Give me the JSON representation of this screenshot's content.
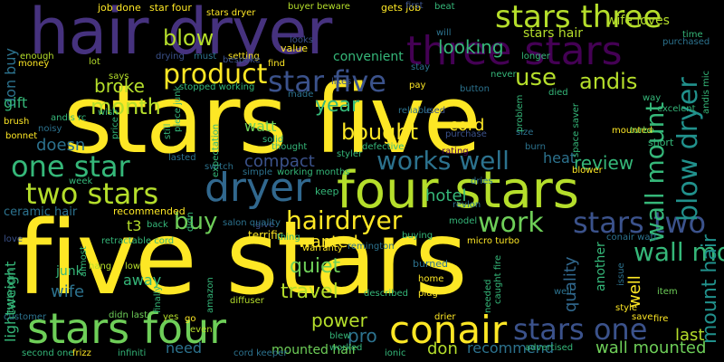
{
  "words": [
    {
      "text": "stars five",
      "color": "#fde725"
    },
    {
      "text": "five stars",
      "color": "#fde725"
    },
    {
      "text": "hair dryer",
      "color": "#46327e"
    },
    {
      "text": "four stars",
      "color": "#b5de2b"
    },
    {
      "text": "three stars",
      "color": "#440154"
    },
    {
      "text": "stars three",
      "color": "#b5de2b"
    },
    {
      "text": "dryer",
      "color": "#31688e"
    },
    {
      "text": "stars four",
      "color": "#6ece58"
    },
    {
      "text": "two stars",
      "color": "#b5de2b"
    },
    {
      "text": "one star",
      "color": "#35b779"
    },
    {
      "text": "star five",
      "color": "#3b528b"
    },
    {
      "text": "product",
      "color": "#fde725"
    },
    {
      "text": "conair",
      "color": "#fde725"
    },
    {
      "text": "stars one",
      "color": "#3b528b"
    },
    {
      "text": "stars two",
      "color": "#3b528b"
    },
    {
      "text": "hairdryer",
      "color": "#fde725"
    },
    {
      "text": "works well",
      "color": "#2c728e"
    },
    {
      "text": "work",
      "color": "#6ece58"
    },
    {
      "text": "wall mount",
      "color": "#35b779"
    },
    {
      "text": "blow dryer",
      "color": "#21918c"
    },
    {
      "text": "month",
      "color": "#b5de2b"
    },
    {
      "text": "blow",
      "color": "#b5de2b"
    },
    {
      "text": "andis",
      "color": "#b5de2b"
    },
    {
      "text": "use",
      "color": "#b5de2b"
    },
    {
      "text": "buy",
      "color": "#6ece58"
    },
    {
      "text": "bought",
      "color": "#fde725"
    },
    {
      "text": "quiet",
      "color": "#6ece58"
    },
    {
      "text": "travel",
      "color": "#b5de2b"
    },
    {
      "text": "power",
      "color": "#b5de2b"
    },
    {
      "text": "wanted",
      "color": "#fde725"
    },
    {
      "text": "year",
      "color": "#35b779"
    },
    {
      "text": "broke",
      "color": "#b5de2b"
    },
    {
      "text": "review",
      "color": "#35b779"
    },
    {
      "text": "hotel",
      "color": "#35b779"
    },
    {
      "text": "mount hair",
      "color": "#21918c"
    },
    {
      "text": "wall mounted",
      "color": "#6ece58"
    },
    {
      "text": "recommend",
      "color": "#2c728e"
    },
    {
      "text": "don",
      "color": "#b5de2b"
    },
    {
      "text": "pro",
      "color": "#2c728e"
    },
    {
      "text": "quality",
      "color": "#31688e"
    },
    {
      "text": "looking",
      "color": "#35b779"
    },
    {
      "text": "doesn",
      "color": "#2c728e"
    },
    {
      "text": "cord",
      "color": "#fde725"
    },
    {
      "text": "compact",
      "color": "#3b528b"
    },
    {
      "text": "watt",
      "color": "#6ece58"
    },
    {
      "text": "need",
      "color": "#2c728e"
    },
    {
      "text": "wife",
      "color": "#2c728e"
    },
    {
      "text": "lightweight",
      "color": "#35b779"
    },
    {
      "text": "mounted hair",
      "color": "#6ece58"
    },
    {
      "text": "well",
      "color": "#fde725"
    },
    {
      "text": "last",
      "color": "#b5de2b"
    },
    {
      "text": "junk",
      "color": "#35b779"
    },
    {
      "text": "t3",
      "color": "#b5de2b"
    },
    {
      "text": "ceramic hair",
      "color": "#2c728e"
    },
    {
      "text": "heat",
      "color": "#2c728e"
    },
    {
      "text": "wife loves",
      "color": "#b5de2b"
    },
    {
      "text": "stars hair",
      "color": "#b5de2b"
    },
    {
      "text": "convenient",
      "color": "#35b779"
    },
    {
      "text": "away",
      "color": "#35b779"
    },
    {
      "text": "don buy",
      "color": "#2c728e"
    },
    {
      "text": "gift",
      "color": "#35b779"
    },
    {
      "text": "job done",
      "color": "#fde725"
    },
    {
      "text": "star four",
      "color": "#fde725"
    },
    {
      "text": "stars dryer",
      "color": "#fde725"
    },
    {
      "text": "buyer beware",
      "color": "#b5de2b"
    },
    {
      "text": "gets job",
      "color": "#fde725"
    },
    {
      "text": "beat",
      "color": "#35b779"
    },
    {
      "text": "value",
      "color": "#fde725"
    },
    {
      "text": "drying",
      "color": "#3b528b"
    },
    {
      "text": "setting",
      "color": "#fde725"
    },
    {
      "text": "stopped working",
      "color": "#35b779"
    },
    {
      "text": "warranty",
      "color": "#fde725"
    },
    {
      "text": "burned",
      "color": "#2c728e"
    },
    {
      "text": "infiniti",
      "color": "#35b779"
    },
    {
      "text": "advertised",
      "color": "#35b779"
    },
    {
      "text": "blew",
      "color": "#35b779"
    },
    {
      "text": "terrific",
      "color": "#fde725"
    },
    {
      "text": "recommended",
      "color": "#fde725"
    },
    {
      "text": "defective",
      "color": "#35b779"
    },
    {
      "text": "solid",
      "color": "#35b779"
    },
    {
      "text": "lasted",
      "color": "#2c728e"
    },
    {
      "text": "keep",
      "color": "#35b779"
    },
    {
      "text": "buying",
      "color": "#35b779"
    },
    {
      "text": "used",
      "color": "#3b528b"
    },
    {
      "text": "purchase",
      "color": "#3b528b"
    },
    {
      "text": "size",
      "color": "#2c728e"
    },
    {
      "text": "short",
      "color": "#35b779"
    },
    {
      "text": "blower",
      "color": "#fde725"
    },
    {
      "text": "fire",
      "color": "#fde725"
    },
    {
      "text": "item",
      "color": "#6ece58"
    },
    {
      "text": "style",
      "color": "#fde725"
    },
    {
      "text": "mounted",
      "color": "#fde725"
    },
    {
      "text": "micro turbo",
      "color": "#fde725"
    },
    {
      "text": "conair watt",
      "color": "#2c728e"
    },
    {
      "text": "home",
      "color": "#fde725"
    },
    {
      "text": "plug",
      "color": "#fde725"
    },
    {
      "text": "hang",
      "color": "#b5de2b"
    },
    {
      "text": "low",
      "color": "#b5de2b"
    },
    {
      "text": "back",
      "color": "#35b779"
    },
    {
      "text": "love",
      "color": "#3b528b"
    },
    {
      "text": "frizz",
      "color": "#fde725"
    },
    {
      "text": "second one",
      "color": "#35b779"
    },
    {
      "text": "didn last",
      "color": "#6ece58"
    },
    {
      "text": "even",
      "color": "#b5de2b"
    },
    {
      "text": "worked",
      "color": "#35b779"
    },
    {
      "text": "ionic",
      "color": "#35b779"
    },
    {
      "text": "cord keeper",
      "color": "#2c728e"
    },
    {
      "text": "brush",
      "color": "#fde725"
    },
    {
      "text": "noisy",
      "color": "#2c728e"
    },
    {
      "text": "bonnet",
      "color": "#fde725"
    },
    {
      "text": "enough",
      "color": "#b5de2b"
    },
    {
      "text": "money",
      "color": "#fde725"
    },
    {
      "text": "wish",
      "color": "#35b779"
    },
    {
      "text": "says",
      "color": "#b5de2b"
    },
    {
      "text": "simple",
      "color": "#2c728e"
    },
    {
      "text": "styler",
      "color": "#35b779"
    },
    {
      "text": "turbo",
      "color": "#6ece58"
    },
    {
      "text": "time",
      "color": "#35b779"
    },
    {
      "text": "purchased",
      "color": "#2c728e"
    },
    {
      "text": "reliable",
      "color": "#2c728e"
    },
    {
      "text": "stay",
      "color": "#2c728e"
    },
    {
      "text": "pay",
      "color": "#fde725"
    },
    {
      "text": "button",
      "color": "#2c728e"
    },
    {
      "text": "died",
      "color": "#35b779"
    },
    {
      "text": "find",
      "color": "#fde725"
    },
    {
      "text": "likes",
      "color": "#3b528b"
    },
    {
      "text": "thought",
      "color": "#35b779"
    },
    {
      "text": "dries",
      "color": "#2c728e"
    },
    {
      "text": "revlon",
      "color": "#2c728e"
    },
    {
      "text": "model",
      "color": "#35b779"
    },
    {
      "text": "drier",
      "color": "#fde725"
    },
    {
      "text": "go",
      "color": "#fde725"
    },
    {
      "text": "yes",
      "color": "#b5de2b"
    },
    {
      "text": "save",
      "color": "#fde725"
    },
    {
      "text": "never",
      "color": "#35b779"
    },
    {
      "text": "will",
      "color": "#2c728e"
    },
    {
      "text": "longer",
      "color": "#35b779"
    },
    {
      "text": "give",
      "color": "#3b528b"
    },
    {
      "text": "thing",
      "color": "#35b779"
    },
    {
      "text": "customer",
      "color": "#2c728e"
    },
    {
      "text": "andis rc",
      "color": "#35b779"
    },
    {
      "text": "way",
      "color": "#35b779"
    },
    {
      "text": "excelent",
      "color": "#35b779"
    },
    {
      "text": "burn",
      "color": "#2c728e"
    },
    {
      "text": "week",
      "color": "#35b779"
    },
    {
      "text": "lot",
      "color": "#b5de2b"
    },
    {
      "text": "must",
      "color": "#2c728e"
    },
    {
      "text": "made",
      "color": "#2c728e"
    },
    {
      "text": "switch",
      "color": "#2c728e"
    },
    {
      "text": "looks",
      "color": "#3b528b"
    },
    {
      "text": "remington",
      "color": "#2c728e"
    },
    {
      "text": "described",
      "color": "#35b779"
    },
    {
      "text": "well",
      "color": "#2c728e"
    },
    {
      "text": "first",
      "color": "#3b528b"
    },
    {
      "text": "almost",
      "color": "#35b779"
    },
    {
      "text": "price",
      "color": "#35b779"
    },
    {
      "text": "finally",
      "color": "#35b779"
    },
    {
      "text": "amazon",
      "color": "#35b779"
    },
    {
      "text": "diffuser",
      "color": "#b5de2b"
    },
    {
      "text": "working months",
      "color": "#35b779"
    },
    {
      "text": "salon quality",
      "color": "#2c728e"
    },
    {
      "text": "expectation",
      "color": "#35b779"
    },
    {
      "text": "space saver",
      "color": "#35b779"
    },
    {
      "text": "andis mic",
      "color": "#35b779"
    },
    {
      "text": "bathroom",
      "color": "#35b779"
    },
    {
      "text": "bespoke",
      "color": "#3b528b"
    },
    {
      "text": "another",
      "color": "#35b779"
    },
    {
      "text": "issue",
      "color": "#2c728e"
    },
    {
      "text": "caught fire",
      "color": "#35b779"
    },
    {
      "text": "needed",
      "color": "#35b779"
    },
    {
      "text": "didn",
      "color": "#35b779"
    },
    {
      "text": "problem",
      "color": "#35b779"
    },
    {
      "text": "rating",
      "color": "#440154"
    },
    {
      "text": "still",
      "color": "#35b779"
    },
    {
      "text": "piece junk",
      "color": "#35b779"
    },
    {
      "text": "retractable cord",
      "color": "#35b779"
    }
  ]
}
